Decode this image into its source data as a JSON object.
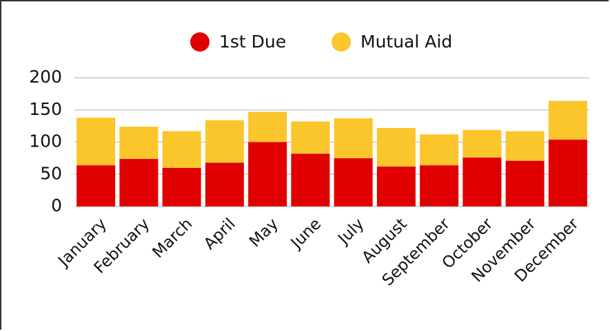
{
  "chart_data": {
    "type": "stacked_bar",
    "categories": [
      "January",
      "February",
      "March",
      "April",
      "May",
      "June",
      "July",
      "August",
      "September",
      "October",
      "November",
      "December"
    ],
    "series": [
      {
        "name": "1st Due",
        "color": "#e00000",
        "values": [
          64,
          74,
          60,
          68,
          100,
          82,
          75,
          62,
          64,
          76,
          71,
          104
        ]
      },
      {
        "name": "Mutual Aid",
        "color": "#fbc52c",
        "values": [
          74,
          50,
          57,
          66,
          47,
          50,
          62,
          60,
          48,
          43,
          46,
          60
        ]
      }
    ],
    "ylim": [
      0,
      200
    ],
    "yticks": [
      0,
      50,
      100,
      150,
      200
    ],
    "grid": true,
    "legend": "top"
  }
}
